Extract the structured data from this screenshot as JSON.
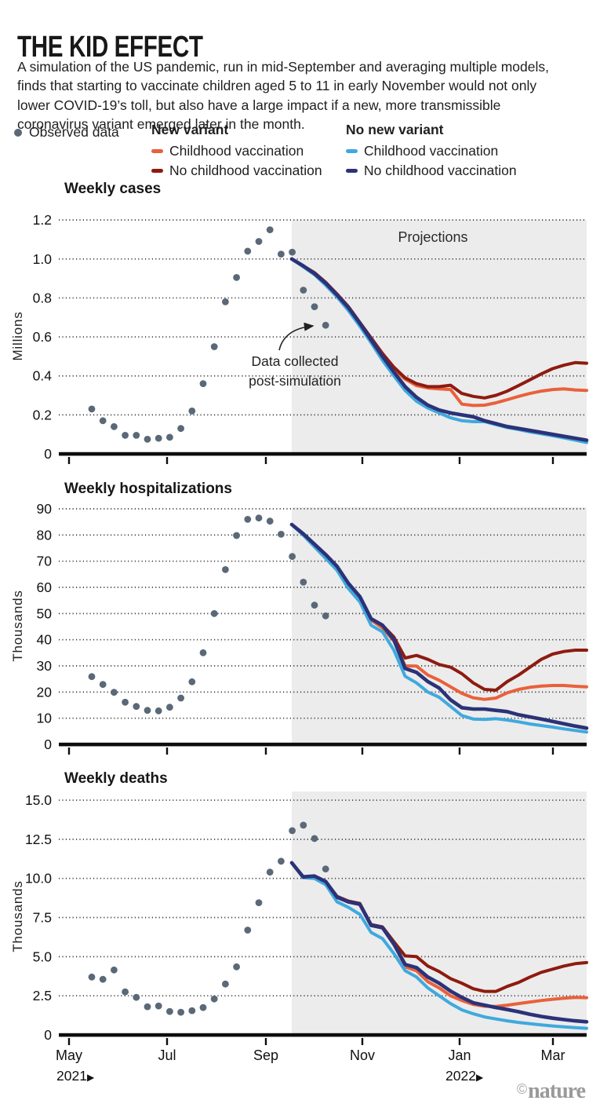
{
  "header": {
    "title": "THE KID EFFECT",
    "description": "A simulation of the US pandemic, run in mid-September and averaging multiple models, finds that starting to vaccinate children aged 5 to 11 in early November would not only lower COVID-19’s toll, but also have a large impact if a new, more transmissible coronavirus variant emerged later in the month.",
    "legend": {
      "observed_label": "Observed data",
      "groups": [
        {
          "title": "New variant",
          "items": [
            {
              "label": "Childhood vaccination",
              "color_key": "orange"
            },
            {
              "label": "No childhood vaccination",
              "color_key": "dark_red"
            }
          ]
        },
        {
          "title": "No new variant",
          "items": [
            {
              "label": "Childhood vaccination",
              "color_key": "light_blue"
            },
            {
              "label": "No childhood vaccination",
              "color_key": "navy"
            }
          ]
        }
      ]
    }
  },
  "colors": {
    "orange": "#E8613B",
    "dark_red": "#8E1B10",
    "light_blue": "#3FA9DE",
    "navy": "#2B3278",
    "observed": "#5A6878",
    "projection_bg": "#ECECEC",
    "grid": "#3C3C3C",
    "axis": "#0D0D0D"
  },
  "x_axis": {
    "tick_labels": [
      "May",
      "Jul",
      "Sep",
      "Nov",
      "Jan",
      "Mar"
    ],
    "year_left": "2021",
    "year_right": "2022",
    "arrow": "▶"
  },
  "footer": {
    "credit_symbol": "©",
    "credit_name": "nature"
  },
  "chart_data": [
    {
      "type": "line",
      "title": "Weekly cases",
      "ylabel": "Millions",
      "ylim": [
        0,
        1.25
      ],
      "yticks": [
        1.2,
        1.0,
        0.8,
        0.6,
        0.4,
        0.2,
        0
      ],
      "ytick_labels": [
        "1.2",
        "1.0",
        "0.8",
        "0.6",
        "0.4",
        "0.2",
        "0"
      ],
      "x_start": "mid-May 2021",
      "x_step": "weekly",
      "projection_start": "mid-Sep 2021",
      "annotations": {
        "projections": "Projections",
        "callout": [
          "Data collected",
          "post-simulation"
        ]
      },
      "observed": [
        0.23,
        0.17,
        0.14,
        0.095,
        0.095,
        0.075,
        0.08,
        0.085,
        0.13,
        0.22,
        0.36,
        0.55,
        0.78,
        0.905,
        1.04,
        1.09,
        1.15,
        1.025,
        1.035,
        0.84,
        0.755,
        0.66
      ],
      "series": [
        {
          "group": "New variant",
          "label": "Childhood vaccination",
          "color_key": "orange",
          "values": [
            1.0,
            0.962,
            0.925,
            0.875,
            0.815,
            0.75,
            0.668,
            0.588,
            0.508,
            0.438,
            0.383,
            0.35,
            0.338,
            0.333,
            0.33,
            0.255,
            0.248,
            0.25,
            0.262,
            0.278,
            0.295,
            0.31,
            0.322,
            0.33,
            0.333,
            0.328,
            0.325
          ]
        },
        {
          "group": "New variant",
          "label": "No childhood vaccination",
          "color_key": "dark_red",
          "values": [
            1.0,
            0.965,
            0.93,
            0.88,
            0.82,
            0.755,
            0.675,
            0.595,
            0.515,
            0.445,
            0.39,
            0.36,
            0.345,
            0.345,
            0.352,
            0.31,
            0.295,
            0.287,
            0.3,
            0.322,
            0.35,
            0.38,
            0.41,
            0.437,
            0.455,
            0.468,
            0.465
          ]
        },
        {
          "group": "No new variant",
          "label": "Childhood vaccination",
          "color_key": "light_blue",
          "values": [
            1.0,
            0.96,
            0.92,
            0.865,
            0.805,
            0.735,
            0.655,
            0.57,
            0.48,
            0.4,
            0.325,
            0.27,
            0.235,
            0.21,
            0.185,
            0.17,
            0.165,
            0.165,
            0.15,
            0.135,
            0.125,
            0.113,
            0.103,
            0.093,
            0.082,
            0.07,
            0.058
          ]
        },
        {
          "group": "No new variant",
          "label": "No childhood vaccination",
          "color_key": "navy",
          "values": [
            1.0,
            0.965,
            0.925,
            0.875,
            0.815,
            0.75,
            0.67,
            0.585,
            0.5,
            0.42,
            0.345,
            0.29,
            0.25,
            0.225,
            0.21,
            0.2,
            0.19,
            0.17,
            0.155,
            0.14,
            0.13,
            0.12,
            0.11,
            0.1,
            0.09,
            0.08,
            0.07
          ]
        }
      ]
    },
    {
      "type": "line",
      "title": "Weekly hospitalizations",
      "ylabel": "Thousands",
      "ylim": [
        0,
        92
      ],
      "yticks": [
        90,
        80,
        70,
        60,
        50,
        40,
        30,
        20,
        10,
        0
      ],
      "ytick_labels": [
        "90",
        "80",
        "70",
        "60",
        "50",
        "40",
        "30",
        "20",
        "10",
        "0"
      ],
      "x_start": "mid-May 2021",
      "x_step": "weekly",
      "projection_start": "mid-Sep 2021",
      "observed": [
        25.9,
        22.9,
        19.9,
        16.1,
        14.5,
        13,
        12.8,
        14.2,
        17.7,
        23.9,
        35,
        50,
        66.8,
        79.8,
        86,
        86.5,
        85.3,
        80.3,
        71.8,
        62,
        53.2,
        49.1
      ],
      "series": [
        {
          "group": "New variant",
          "label": "Childhood vaccination",
          "color_key": "orange",
          "values": [
            84,
            80.5,
            76,
            72,
            67.5,
            61,
            56,
            47.5,
            44.5,
            39.5,
            30,
            29.9,
            26.5,
            24.5,
            22,
            19.5,
            17.8,
            17.2,
            17.7,
            19.7,
            21,
            21.8,
            22.3,
            22.5,
            22.5,
            22.2,
            22
          ]
        },
        {
          "group": "New variant",
          "label": "No childhood vaccination",
          "color_key": "dark_red",
          "values": [
            84,
            80.5,
            76.5,
            72.5,
            68,
            61.5,
            56.5,
            48,
            45.5,
            41,
            33,
            34,
            32.5,
            30.5,
            29.5,
            27,
            23.5,
            21,
            20.7,
            24,
            26.5,
            29.5,
            32.5,
            34.5,
            35.5,
            36,
            36
          ]
        },
        {
          "group": "No new variant",
          "label": "Childhood vaccination",
          "color_key": "light_blue",
          "values": [
            84,
            80,
            75.5,
            71,
            66.5,
            59.5,
            54.5,
            45.5,
            43,
            36,
            26,
            23.5,
            20,
            18,
            14.5,
            11,
            9.7,
            9.5,
            9.8,
            9.3,
            8.6,
            7.8,
            7.2,
            6.6,
            5.9,
            5.3,
            4.7
          ]
        },
        {
          "group": "No new variant",
          "label": "No childhood vaccination",
          "color_key": "navy",
          "values": [
            84,
            80.5,
            76.5,
            72.5,
            68,
            61.5,
            56.5,
            48,
            45.5,
            40,
            29,
            27.5,
            24,
            21.5,
            17,
            14,
            13.5,
            13.5,
            13,
            12.5,
            11.3,
            10.5,
            9.7,
            8.8,
            7.9,
            7,
            6.2
          ]
        }
      ]
    },
    {
      "type": "line",
      "title": "Weekly deaths",
      "ylabel": "Thousands",
      "ylim": [
        0,
        15.5
      ],
      "yticks": [
        15.0,
        12.5,
        10.0,
        7.5,
        5.0,
        2.5,
        0
      ],
      "ytick_labels": [
        "15.0",
        "12.5",
        "10.0",
        "7.5",
        "5.0",
        "2.5",
        "0"
      ],
      "x_start": "mid-May 2021",
      "x_step": "weekly",
      "projection_start": "mid-Sep 2021",
      "observed": [
        3.7,
        3.55,
        4.15,
        2.75,
        2.4,
        1.8,
        1.85,
        1.5,
        1.45,
        1.55,
        1.75,
        2.3,
        3.25,
        4.35,
        6.7,
        8.45,
        10.4,
        11.1,
        13.05,
        13.4,
        12.55,
        10.6
      ],
      "series": [
        {
          "group": "New variant",
          "label": "Childhood vaccination",
          "color_key": "orange",
          "values": [
            11,
            10.05,
            10.1,
            9.75,
            8.8,
            8.5,
            8.35,
            7,
            6.85,
            5.85,
            4.35,
            4.1,
            3.4,
            3,
            2.5,
            2.2,
            1.95,
            1.83,
            1.82,
            1.9,
            2,
            2.1,
            2.2,
            2.28,
            2.35,
            2.4,
            2.38
          ]
        },
        {
          "group": "New variant",
          "label": "No childhood vaccination",
          "color_key": "dark_red",
          "values": [
            11,
            10.1,
            10.15,
            9.8,
            8.85,
            8.55,
            8.4,
            7.05,
            6.9,
            5.95,
            5.05,
            5,
            4.4,
            4.05,
            3.6,
            3.3,
            2.95,
            2.78,
            2.78,
            3.1,
            3.35,
            3.7,
            4,
            4.2,
            4.4,
            4.55,
            4.62
          ]
        },
        {
          "group": "No new variant",
          "label": "Childhood vaccination",
          "color_key": "light_blue",
          "values": [
            11,
            10.05,
            10,
            9.6,
            8.5,
            8.15,
            7.7,
            6.55,
            6.15,
            5.2,
            4.1,
            3.7,
            3,
            2.5,
            2,
            1.6,
            1.35,
            1.15,
            1.02,
            0.9,
            0.8,
            0.72,
            0.64,
            0.57,
            0.51,
            0.46,
            0.42
          ]
        },
        {
          "group": "No new variant",
          "label": "No childhood vaccination",
          "color_key": "navy",
          "values": [
            11,
            10.1,
            10.15,
            9.8,
            8.8,
            8.5,
            8.35,
            7,
            6.85,
            5.8,
            4.5,
            4.3,
            3.7,
            3.3,
            2.8,
            2.4,
            2.05,
            1.9,
            1.75,
            1.62,
            1.48,
            1.32,
            1.18,
            1.07,
            0.98,
            0.9,
            0.84
          ]
        }
      ]
    }
  ]
}
